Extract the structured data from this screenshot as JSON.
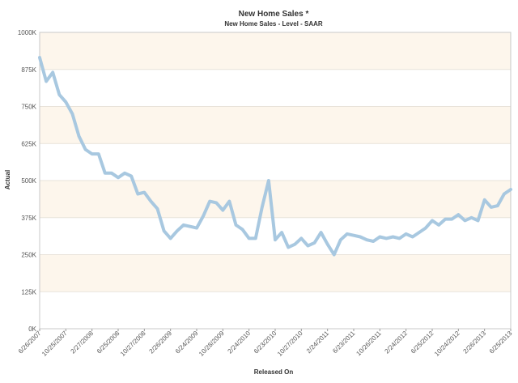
{
  "chart_data": {
    "type": "line",
    "title": "New Home Sales *",
    "subtitle": "New Home Sales - Level - SAAR",
    "xlabel": "Released On",
    "ylabel": "Actual",
    "ylim": [
      0,
      1000
    ],
    "y_ticks": [
      {
        "value": 0,
        "label": "0K"
      },
      {
        "value": 125,
        "label": "125K"
      },
      {
        "value": 250,
        "label": "250K"
      },
      {
        "value": 375,
        "label": "375K"
      },
      {
        "value": 500,
        "label": "500K"
      },
      {
        "value": 625,
        "label": "625K"
      },
      {
        "value": 750,
        "label": "750K"
      },
      {
        "value": 875,
        "label": "875K"
      },
      {
        "value": 1000,
        "label": "1000K"
      }
    ],
    "x_ticks": [
      {
        "index": 0,
        "label": "6/26/2007"
      },
      {
        "index": 4,
        "label": "10/25/2007"
      },
      {
        "index": 8,
        "label": "2/27/2008"
      },
      {
        "index": 12,
        "label": "6/25/2008"
      },
      {
        "index": 16,
        "label": "10/27/2008"
      },
      {
        "index": 20,
        "label": "2/26/2009"
      },
      {
        "index": 24,
        "label": "6/24/2009"
      },
      {
        "index": 28,
        "label": "10/28/2009"
      },
      {
        "index": 32,
        "label": "2/24/2010"
      },
      {
        "index": 36,
        "label": "6/23/2010"
      },
      {
        "index": 40,
        "label": "10/27/2010"
      },
      {
        "index": 44,
        "label": "2/24/2011"
      },
      {
        "index": 48,
        "label": "6/23/2011"
      },
      {
        "index": 52,
        "label": "10/26/2011"
      },
      {
        "index": 56,
        "label": "2/24/2012"
      },
      {
        "index": 60,
        "label": "6/25/2012"
      },
      {
        "index": 64,
        "label": "10/24/2012"
      },
      {
        "index": 68,
        "label": "2/26/2013"
      },
      {
        "index": 72,
        "label": "6/25/2013"
      }
    ],
    "series": [
      {
        "values": [
          915,
          835,
          865,
          790,
          765,
          725,
          650,
          605,
          590,
          590,
          525,
          525,
          510,
          525,
          515,
          455,
          460,
          430,
          405,
          330,
          305,
          330,
          350,
          345,
          340,
          380,
          430,
          425,
          400,
          430,
          350,
          335,
          305,
          305,
          410,
          500,
          300,
          325,
          275,
          285,
          305,
          280,
          290,
          325,
          285,
          250,
          300,
          320,
          315,
          310,
          300,
          295,
          310,
          305,
          310,
          305,
          320,
          310,
          325,
          340,
          365,
          350,
          370,
          370,
          385,
          365,
          375,
          365,
          435,
          410,
          415,
          455,
          470
        ],
        "color": "#a8c8e0"
      }
    ],
    "band_colors": [
      "#fdf6ec",
      "#ffffff"
    ],
    "grid": true
  }
}
